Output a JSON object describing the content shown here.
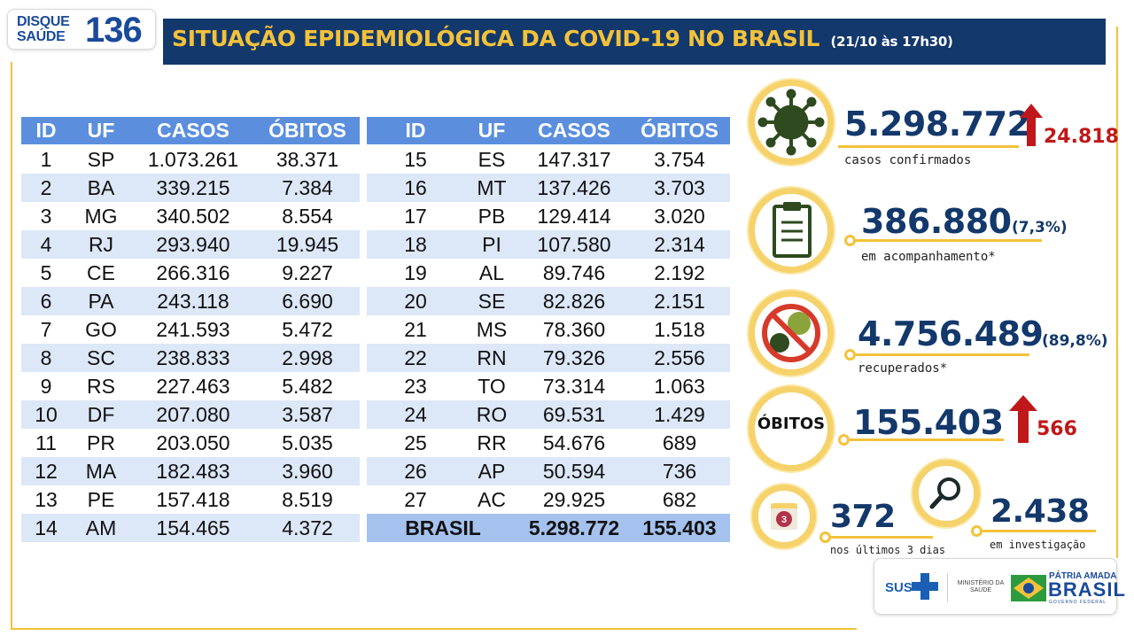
{
  "logo": {
    "line1": "DISQUE",
    "line2": "SAÚDE",
    "number": "136"
  },
  "header": {
    "title": "SITUAÇÃO EPIDEMIOLÓGICA DA COVID-19 NO BRASIL",
    "date": "(21/10 às 17h30)"
  },
  "table_columns": [
    "ID",
    "UF",
    "CASOS",
    "ÓBITOS"
  ],
  "table_left": [
    {
      "id": "1",
      "uf": "SP",
      "casos": "1.073.261",
      "obitos": "38.371"
    },
    {
      "id": "2",
      "uf": "BA",
      "casos": "339.215",
      "obitos": "7.384"
    },
    {
      "id": "3",
      "uf": "MG",
      "casos": "340.502",
      "obitos": "8.554"
    },
    {
      "id": "4",
      "uf": "RJ",
      "casos": "293.940",
      "obitos": "19.945"
    },
    {
      "id": "5",
      "uf": "CE",
      "casos": "266.316",
      "obitos": "9.227"
    },
    {
      "id": "6",
      "uf": "PA",
      "casos": "243.118",
      "obitos": "6.690"
    },
    {
      "id": "7",
      "uf": "GO",
      "casos": "241.593",
      "obitos": "5.472"
    },
    {
      "id": "8",
      "uf": "SC",
      "casos": "238.833",
      "obitos": "2.998"
    },
    {
      "id": "9",
      "uf": "RS",
      "casos": "227.463",
      "obitos": "5.482"
    },
    {
      "id": "10",
      "uf": "DF",
      "casos": "207.080",
      "obitos": "3.587"
    },
    {
      "id": "11",
      "uf": "PR",
      "casos": "203.050",
      "obitos": "5.035"
    },
    {
      "id": "12",
      "uf": "MA",
      "casos": "182.483",
      "obitos": "3.960"
    },
    {
      "id": "13",
      "uf": "PE",
      "casos": "157.418",
      "obitos": "8.519"
    },
    {
      "id": "14",
      "uf": "AM",
      "casos": "154.465",
      "obitos": "4.372"
    }
  ],
  "table_right": [
    {
      "id": "15",
      "uf": "ES",
      "casos": "147.317",
      "obitos": "3.754"
    },
    {
      "id": "16",
      "uf": "MT",
      "casos": "137.426",
      "obitos": "3.703"
    },
    {
      "id": "17",
      "uf": "PB",
      "casos": "129.414",
      "obitos": "3.020"
    },
    {
      "id": "18",
      "uf": "PI",
      "casos": "107.580",
      "obitos": "2.314"
    },
    {
      "id": "19",
      "uf": "AL",
      "casos": "89.746",
      "obitos": "2.192"
    },
    {
      "id": "20",
      "uf": "SE",
      "casos": "82.826",
      "obitos": "2.151"
    },
    {
      "id": "21",
      "uf": "MS",
      "casos": "78.360",
      "obitos": "1.518"
    },
    {
      "id": "22",
      "uf": "RN",
      "casos": "79.326",
      "obitos": "2.556"
    },
    {
      "id": "23",
      "uf": "TO",
      "casos": "73.314",
      "obitos": "1.063"
    },
    {
      "id": "24",
      "uf": "RO",
      "casos": "69.531",
      "obitos": "1.429"
    },
    {
      "id": "25",
      "uf": "RR",
      "casos": "54.676",
      "obitos": "689"
    },
    {
      "id": "26",
      "uf": "AP",
      "casos": "50.594",
      "obitos": "736"
    },
    {
      "id": "27",
      "uf": "AC",
      "casos": "29.925",
      "obitos": "682"
    }
  ],
  "table_total": {
    "label": "BRASIL",
    "casos": "5.298.772",
    "obitos": "155.403"
  },
  "stats": {
    "confirmed": {
      "value": "5.298.772",
      "increase": "24.818",
      "label": "casos confirmados",
      "icon": "virus-icon"
    },
    "monitoring": {
      "value": "386.880",
      "percent": "(7,3%)",
      "label": "em acompanhamento*",
      "icon": "clipboard-icon"
    },
    "recovered": {
      "value": "4.756.489",
      "percent": "(89,8%)",
      "label": "recuperados*",
      "icon": "no-virus-icon"
    },
    "deaths": {
      "badge": "ÓBITOS",
      "value": "155.403",
      "increase": "566"
    },
    "last3days": {
      "value": "372",
      "label": "nos últimos 3 dias",
      "icon": "calendar-icon",
      "calendar_number": "3"
    },
    "investigation": {
      "value": "2.438",
      "label": "em investigação",
      "icon": "magnifier-icon"
    }
  },
  "footer": {
    "sus": "SUS",
    "ministry_line1": "MINISTÉRIO DA",
    "ministry_line2": "SAÚDE",
    "patria": "PÁTRIA AMADA",
    "brasil": "BRASIL",
    "gov": "GOVERNO FEDERAL"
  },
  "colors": {
    "navy": "#13386b",
    "gold": "#f3c23a",
    "table_header": "#5b8fde",
    "row_alt": "#dce7f7",
    "alert_red": "#c0181a"
  }
}
